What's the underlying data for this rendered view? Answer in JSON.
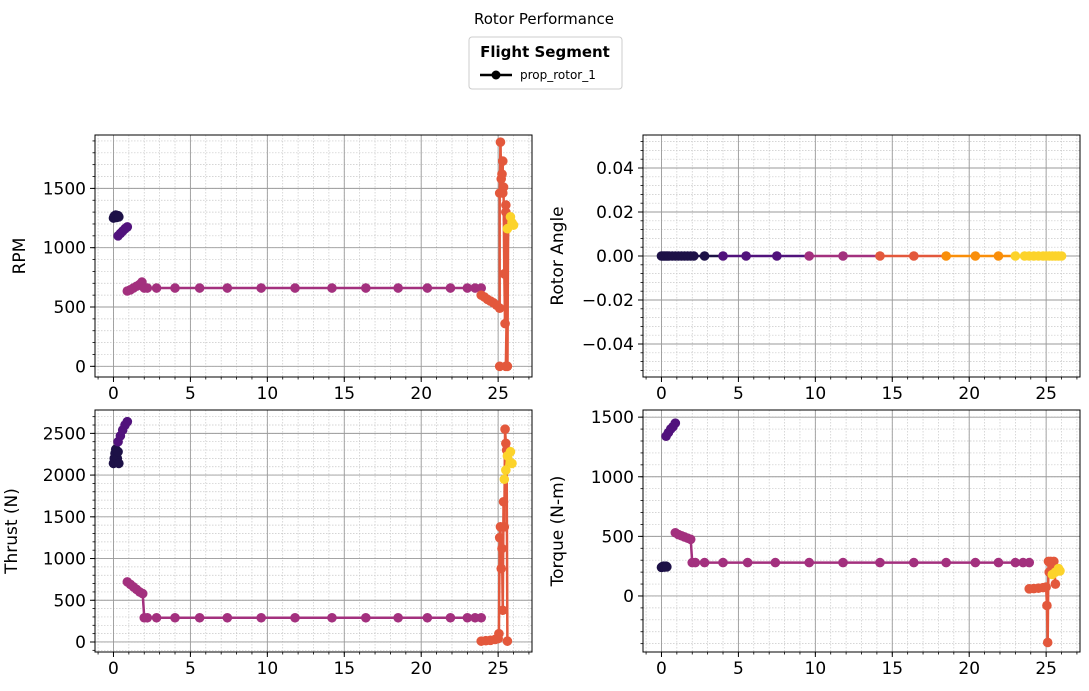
{
  "figure": {
    "title": "Rotor Performance",
    "legend": {
      "title": "Flight Segment",
      "entries": [
        {
          "label": "prop_rotor_1",
          "color": "#000000"
        }
      ],
      "placement": "top-center"
    }
  },
  "chart_data": [
    {
      "type": "line",
      "id": "rpm",
      "ylabel": "RPM",
      "xlabel": "",
      "xlim": [
        -1.2,
        27.2
      ],
      "ylim": [
        -90,
        1950
      ],
      "xticks": [
        0,
        5,
        10,
        15,
        20,
        25
      ],
      "yticks": [
        0,
        500,
        1000,
        1500
      ],
      "grid": true,
      "series": [
        {
          "points": [
            [
              0.0,
              1250
            ],
            [
              0.05,
              1265
            ],
            [
              0.1,
              1270
            ],
            [
              0.15,
              1275
            ],
            [
              0.2,
              1255
            ],
            [
              0.25,
              1265
            ],
            [
              0.3,
              1270
            ],
            [
              0.35,
              1260
            ]
          ]
        },
        {
          "points": [
            [
              0.3,
              1100
            ],
            [
              0.45,
              1120
            ],
            [
              0.6,
              1140
            ],
            [
              0.75,
              1160
            ],
            [
              0.9,
              1175
            ]
          ]
        },
        {
          "points": [
            [
              0.9,
              635
            ],
            [
              1.1,
              645
            ],
            [
              1.3,
              660
            ],
            [
              1.5,
              675
            ],
            [
              1.7,
              690
            ],
            [
              1.85,
              710
            ],
            [
              2.0,
              660
            ],
            [
              2.2,
              660
            ],
            [
              2.8,
              660
            ],
            [
              4.0,
              660
            ],
            [
              5.6,
              660
            ],
            [
              7.4,
              660
            ],
            [
              9.6,
              660
            ],
            [
              11.8,
              660
            ],
            [
              14.2,
              660
            ],
            [
              16.4,
              660
            ],
            [
              18.5,
              660
            ],
            [
              20.4,
              660
            ],
            [
              21.9,
              660
            ],
            [
              23.0,
              660
            ],
            [
              23.5,
              660
            ],
            [
              23.9,
              660
            ]
          ]
        },
        {
          "points": [
            [
              23.9,
              600
            ],
            [
              24.1,
              585
            ],
            [
              24.3,
              565
            ],
            [
              24.5,
              550
            ],
            [
              24.7,
              535
            ],
            [
              24.9,
              515
            ],
            [
              25.1,
              490
            ],
            [
              25.1,
              1460
            ],
            [
              25.15,
              1890
            ],
            [
              25.2,
              1580
            ],
            [
              25.25,
              1620
            ],
            [
              25.3,
              1730
            ],
            [
              25.3,
              1460
            ],
            [
              25.35,
              1510
            ],
            [
              25.4,
              780
            ],
            [
              25.45,
              360
            ],
            [
              25.5,
              1360
            ],
            [
              25.5,
              1300
            ],
            [
              25.6,
              1240
            ],
            [
              25.6,
              0
            ],
            [
              25.65,
              1220
            ],
            [
              25.5,
              0
            ],
            [
              25.1,
              0
            ]
          ]
        },
        {
          "points": [
            [
              25.6,
              1160
            ],
            [
              25.8,
              1260
            ],
            [
              25.9,
              1210
            ],
            [
              26.0,
              1190
            ]
          ]
        }
      ]
    },
    {
      "type": "line",
      "id": "rotor_angle",
      "ylabel": "Rotor Angle",
      "xlabel": "",
      "xlim": [
        -1.2,
        27.2
      ],
      "ylim": [
        -0.055,
        0.055
      ],
      "xticks": [
        0,
        5,
        10,
        15,
        20,
        25
      ],
      "yticks": [
        -0.04,
        -0.02,
        0.0,
        0.02,
        0.04
      ],
      "tick_labels": [
        "−0.04",
        "−0.02",
        "0.00",
        "0.02",
        "0.04"
      ],
      "grid": true,
      "series": [
        {
          "points": [
            [
              0.0,
              0
            ],
            [
              0.1,
              0
            ],
            [
              0.2,
              0
            ],
            [
              0.3,
              0
            ],
            [
              0.4,
              0
            ],
            [
              0.5,
              0
            ],
            [
              0.7,
              0
            ],
            [
              0.9,
              0
            ],
            [
              1.1,
              0
            ],
            [
              1.3,
              0
            ],
            [
              1.5,
              0
            ],
            [
              1.7,
              0
            ],
            [
              1.9,
              0
            ],
            [
              2.1,
              0
            ],
            [
              2.8,
              0
            ],
            [
              4.0,
              0
            ],
            [
              5.5,
              0
            ],
            [
              7.5,
              0
            ],
            [
              9.6,
              0
            ],
            [
              11.8,
              0
            ],
            [
              14.2,
              0
            ],
            [
              16.4,
              0
            ],
            [
              18.5,
              0
            ],
            [
              20.4,
              0
            ],
            [
              21.9,
              0
            ],
            [
              23.0,
              0
            ],
            [
              23.6,
              0
            ],
            [
              23.9,
              0
            ],
            [
              24.2,
              0
            ],
            [
              24.5,
              0
            ],
            [
              24.8,
              0
            ],
            [
              25.0,
              0
            ],
            [
              25.2,
              0
            ],
            [
              25.4,
              0
            ],
            [
              25.6,
              0
            ],
            [
              25.8,
              0
            ],
            [
              26.0,
              0
            ]
          ]
        }
      ]
    },
    {
      "type": "line",
      "id": "thrust",
      "ylabel": "Thrust (N)",
      "xlabel": "",
      "xlim": [
        -1.2,
        27.2
      ],
      "ylim": [
        -120,
        2780
      ],
      "xticks": [
        0,
        5,
        10,
        15,
        20,
        25
      ],
      "yticks": [
        0,
        500,
        1000,
        1500,
        2000,
        2500
      ],
      "grid": true,
      "series": [
        {
          "points": [
            [
              0.0,
              2140
            ],
            [
              0.05,
              2200
            ],
            [
              0.1,
              2260
            ],
            [
              0.15,
              2310
            ],
            [
              0.2,
              2150
            ],
            [
              0.25,
              2200
            ],
            [
              0.3,
              2280
            ],
            [
              0.35,
              2140
            ]
          ]
        },
        {
          "points": [
            [
              0.3,
              2400
            ],
            [
              0.45,
              2470
            ],
            [
              0.6,
              2540
            ],
            [
              0.75,
              2600
            ],
            [
              0.9,
              2640
            ]
          ]
        },
        {
          "points": [
            [
              0.9,
              720
            ],
            [
              1.1,
              690
            ],
            [
              1.3,
              660
            ],
            [
              1.5,
              630
            ],
            [
              1.7,
              600
            ],
            [
              1.9,
              580
            ],
            [
              2.0,
              290
            ],
            [
              2.2,
              290
            ],
            [
              2.8,
              290
            ],
            [
              4.0,
              290
            ],
            [
              5.6,
              290
            ],
            [
              7.4,
              290
            ],
            [
              9.6,
              290
            ],
            [
              11.8,
              290
            ],
            [
              14.2,
              290
            ],
            [
              16.4,
              290
            ],
            [
              18.5,
              290
            ],
            [
              20.4,
              290
            ],
            [
              21.9,
              290
            ],
            [
              23.0,
              290
            ],
            [
              23.5,
              290
            ],
            [
              23.9,
              290
            ]
          ]
        },
        {
          "points": [
            [
              23.9,
              10
            ],
            [
              24.2,
              15
            ],
            [
              24.5,
              20
            ],
            [
              24.8,
              30
            ],
            [
              25.0,
              40
            ],
            [
              25.05,
              100
            ],
            [
              25.1,
              1250
            ],
            [
              25.15,
              1380
            ],
            [
              25.2,
              880
            ],
            [
              25.25,
              1120
            ],
            [
              25.3,
              380
            ],
            [
              25.35,
              1680
            ],
            [
              25.4,
              1380
            ],
            [
              25.45,
              2550
            ],
            [
              25.5,
              2380
            ],
            [
              25.55,
              2300
            ],
            [
              25.6,
              10
            ]
          ]
        },
        {
          "points": [
            [
              25.4,
              1950
            ],
            [
              25.5,
              2060
            ],
            [
              25.6,
              2230
            ],
            [
              25.8,
              2280
            ],
            [
              25.9,
              2140
            ]
          ]
        }
      ]
    },
    {
      "type": "line",
      "id": "torque",
      "ylabel": "Torque (N-m)",
      "xlabel": "",
      "xlim": [
        -1.2,
        27.2
      ],
      "ylim": [
        -470,
        1560
      ],
      "xticks": [
        0,
        5,
        10,
        15,
        20,
        25
      ],
      "yticks": [
        0,
        500,
        1000,
        1500
      ],
      "grid": true,
      "series": [
        {
          "points": [
            [
              0.0,
              240
            ],
            [
              0.05,
              245
            ],
            [
              0.1,
              248
            ],
            [
              0.15,
              250
            ],
            [
              0.2,
              242
            ],
            [
              0.25,
              246
            ],
            [
              0.3,
              250
            ],
            [
              0.35,
              244
            ]
          ]
        },
        {
          "points": [
            [
              0.3,
              1340
            ],
            [
              0.45,
              1370
            ],
            [
              0.6,
              1400
            ],
            [
              0.75,
              1420
            ],
            [
              0.9,
              1450
            ]
          ]
        },
        {
          "points": [
            [
              0.9,
              530
            ],
            [
              1.1,
              515
            ],
            [
              1.3,
              505
            ],
            [
              1.5,
              495
            ],
            [
              1.7,
              485
            ],
            [
              1.9,
              475
            ],
            [
              2.0,
              280
            ],
            [
              2.2,
              280
            ],
            [
              2.8,
              280
            ],
            [
              4.0,
              280
            ],
            [
              5.6,
              280
            ],
            [
              7.4,
              280
            ],
            [
              9.6,
              280
            ],
            [
              11.8,
              280
            ],
            [
              14.2,
              280
            ],
            [
              16.4,
              280
            ],
            [
              18.5,
              280
            ],
            [
              20.4,
              280
            ],
            [
              21.9,
              280
            ],
            [
              23.0,
              280
            ],
            [
              23.5,
              280
            ],
            [
              23.9,
              280
            ]
          ]
        },
        {
          "points": [
            [
              23.9,
              60
            ],
            [
              24.2,
              62
            ],
            [
              24.5,
              65
            ],
            [
              24.8,
              70
            ],
            [
              25.0,
              75
            ],
            [
              25.05,
              -80
            ],
            [
              25.1,
              -390
            ],
            [
              25.15,
              290
            ],
            [
              25.2,
              200
            ],
            [
              25.3,
              290
            ],
            [
              25.4,
              200
            ],
            [
              25.5,
              290
            ],
            [
              25.6,
              100
            ]
          ]
        },
        {
          "points": [
            [
              25.4,
              180
            ],
            [
              25.6,
              200
            ],
            [
              25.8,
              230
            ],
            [
              25.9,
              210
            ]
          ]
        }
      ]
    }
  ]
}
